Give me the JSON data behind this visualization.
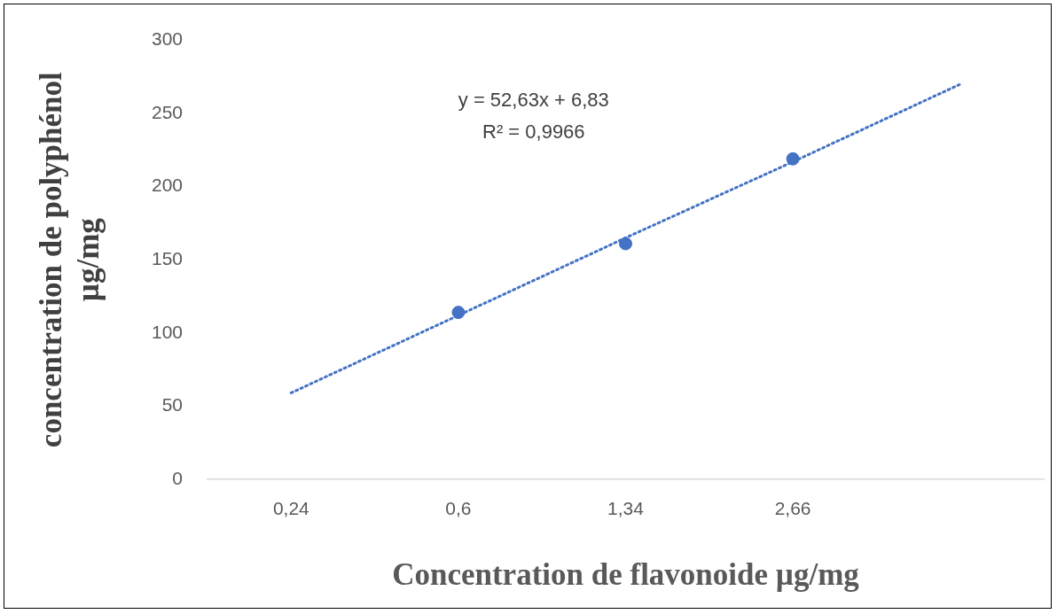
{
  "chart_data": {
    "type": "scatter",
    "xlabel": "Concentration de flavonoide µg/mg",
    "ylabel": "concentration de polyphénol µg/mg",
    "categories": [
      "0,24",
      "0,6",
      "1,34",
      "2,66",
      null
    ],
    "series": [
      {
        "type": "scatter",
        "color": "#4472c4",
        "marker": "circle",
        "values": [
          null,
          114,
          161,
          219,
          null
        ]
      },
      {
        "type": "line",
        "color": "#4472c4",
        "marker": "none",
        "line_style": "dotted",
        "values": [
          59,
          112,
          165,
          217,
          270
        ]
      }
    ],
    "ylim": [
      0,
      300
    ],
    "yticks": [
      0,
      50,
      100,
      150,
      200,
      250,
      300
    ],
    "grid": false,
    "legend": false,
    "annotations": [
      "y = 52,63x + 6,83",
      "R² = 0,9966"
    ]
  }
}
